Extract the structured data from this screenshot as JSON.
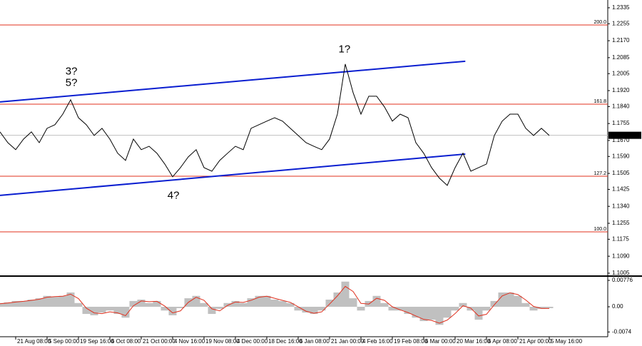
{
  "chart_data": [
    {
      "type": "line",
      "color": "#000000",
      "categories": [
        null,
        null,
        "21 Aug 08:00",
        null,
        null,
        null,
        "5 Sep 00:00",
        null,
        null,
        null,
        "19 Sep 16:00",
        null,
        null,
        null,
        "6 Oct 08:00",
        null,
        null,
        null,
        "21 Oct 00:00",
        null,
        null,
        null,
        "4 Nov 16:00",
        null,
        null,
        null,
        "19 Nov 08:00",
        null,
        null,
        null,
        "4 Dec 00:00",
        null,
        null,
        null,
        "18 Dec 16:00",
        null,
        null,
        null,
        "6 Jan 08:00",
        null,
        null,
        null,
        "21 Jan 00:00",
        null,
        null,
        null,
        "4 Feb 16:00",
        null,
        null,
        null,
        "19 Feb 08:00",
        null,
        null,
        null,
        "6 Mar 00:00",
        null,
        null,
        null,
        "20 Mar 16:00",
        null,
        null,
        null,
        "6 Apr 08:00",
        null,
        null,
        null,
        "21 Apr 00:00",
        null,
        null,
        null,
        "5 May 16:00"
      ],
      "values": [
        1.1713,
        1.1659,
        1.1624,
        1.1677,
        1.1713,
        1.1659,
        1.1731,
        1.1749,
        1.1802,
        1.1874,
        1.1784,
        1.1749,
        1.1695,
        1.1731,
        1.1677,
        1.1606,
        1.157,
        1.1677,
        1.1624,
        1.1641,
        1.1606,
        1.1552,
        1.1488,
        1.1534,
        1.1588,
        1.1624,
        1.1534,
        1.1516,
        1.157,
        1.1606,
        1.1641,
        1.1624,
        1.1731,
        1.1749,
        1.1767,
        1.1784,
        1.1767,
        1.1731,
        1.1695,
        1.1659,
        1.1641,
        1.1624,
        1.1677,
        1.1802,
        1.2053,
        1.191,
        1.1802,
        1.1892,
        1.1892,
        1.1838,
        1.1767,
        1.1802,
        1.1784,
        1.1659,
        1.1606,
        1.1534,
        1.1481,
        1.1445,
        1.1534,
        1.1606,
        1.1516,
        1.1534,
        1.1552,
        1.1695,
        1.1767,
        1.1802,
        1.1802,
        1.1731,
        1.1695,
        1.1731,
        1.1695
      ],
      "ylim": [
        1.0994,
        1.2374
      ],
      "yticks": [
        1.2335,
        1.2255,
        {
          "value": 1.217,
          "label": "1.2170"
        },
        1.2085,
        1.2005,
        {
          "value": 1.192,
          "label": "1.1920"
        },
        {
          "value": 1.184,
          "label": "1.1840"
        },
        1.1755,
        {
          "value": 1.167,
          "label": "1.1670"
        },
        {
          "value": 1.159,
          "label": "1.1590"
        },
        1.1505,
        1.1425,
        {
          "value": 1.134,
          "label": "1.1340"
        },
        1.1255,
        1.1175,
        {
          "value": 1.109,
          "label": "1.1090"
        },
        1.1005
      ],
      "current_price": 1.1696,
      "levels_color": "#e0301e",
      "levels": [
        {
          "label": "200.0",
          "value": 1.2249
        },
        {
          "label": "161.8",
          "value": 1.1852
        },
        {
          "label": "127.2",
          "value": 1.1491
        },
        {
          "label": "100.0",
          "value": 1.1212
        }
      ],
      "trendline_color": "#0a1ed0",
      "trendlines": [
        {
          "x": [
            0,
            59.3
          ],
          "y": [
            1.1863,
            1.2067
          ]
        },
        {
          "x": [
            0,
            59.3
          ],
          "y": [
            1.1395,
            1.1602
          ]
        }
      ],
      "annotations": [
        {
          "text": "3?",
          "color": "#e0301e",
          "x": 9.1,
          "y": 1.2015
        },
        {
          "text": "5?",
          "color": "#0a1ed0",
          "x": 9.1,
          "y": 1.1957
        },
        {
          "text": "4?",
          "color": "#e0301e",
          "x": 22.1,
          "y": 1.1392
        },
        {
          "text": "1?",
          "color": "#0a1ed0",
          "x": 43.9,
          "y": 1.2125
        }
      ]
    },
    {
      "type": "bar",
      "color": "#c0c0c0",
      "values": [
        0.0011,
        0.0013,
        0.0017,
        0.0017,
        0.0021,
        0.0025,
        0.0032,
        0.0029,
        0.0032,
        0.0042,
        0.0011,
        -0.0021,
        -0.0025,
        -0.0017,
        -0.0011,
        -0.0021,
        -0.0032,
        0.0017,
        0.0021,
        0.0011,
        0.0017,
        -0.0011,
        -0.0025,
        -0.0004,
        0.0025,
        0.0032,
        0.0011,
        -0.0021,
        -0.0006,
        0.0011,
        0.0017,
        0.0011,
        0.0025,
        0.0032,
        0.0032,
        0.0021,
        0.0017,
        0.0011,
        -0.0011,
        -0.0017,
        -0.0021,
        -0.0011,
        0.0021,
        0.0042,
        0.0074,
        0.0025,
        -0.0011,
        0.0017,
        0.0032,
        0.0011,
        -0.0011,
        -0.0011,
        -0.0021,
        -0.0032,
        -0.0042,
        -0.0038,
        -0.0053,
        -0.0032,
        -0.0011,
        0.0011,
        -0.0011,
        -0.0038,
        -0.0011,
        0.0017,
        0.0042,
        0.0042,
        0.0032,
        0.0011,
        -0.0011,
        -0.0006,
        -0.0004
      ],
      "signal_color": "#e0301e",
      "signal_values": [
        0.0009,
        0.0011,
        0.0014,
        0.0016,
        0.0019,
        0.0022,
        0.0028,
        0.003,
        0.0031,
        0.0037,
        0.0024,
        -0.0004,
        -0.0018,
        -0.002,
        -0.0015,
        -0.0018,
        -0.0026,
        0.0003,
        0.0017,
        0.0015,
        0.0016,
        0.0002,
        -0.0018,
        -0.0012,
        0.0013,
        0.0028,
        0.0019,
        -0.0006,
        -0.0012,
        0.0004,
        0.0014,
        0.0013,
        0.0019,
        0.0028,
        0.0031,
        0.0025,
        0.0019,
        0.0013,
        0.0,
        -0.0013,
        -0.0019,
        -0.0015,
        0.0008,
        0.0032,
        0.006,
        0.0045,
        0.001,
        0.0008,
        0.0025,
        0.0019,
        0.0,
        -0.0009,
        -0.0017,
        -0.0027,
        -0.0037,
        -0.004,
        -0.0048,
        -0.0039,
        -0.002,
        0.0003,
        -0.0004,
        -0.0027,
        -0.0022,
        0.0006,
        0.0032,
        0.0041,
        0.0036,
        0.002,
        0.0001,
        -0.0005,
        -0.0005
      ],
      "ylim": [
        -0.0088,
        0.0086
      ],
      "yticks": [
        0.00776,
        {
          "value": 0,
          "label": "0.00"
        },
        -0.0074
      ]
    }
  ]
}
